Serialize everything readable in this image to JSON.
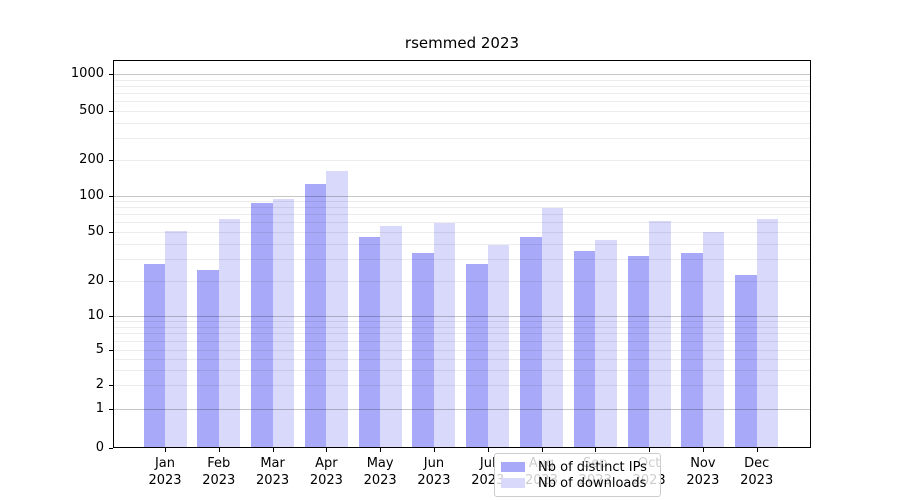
{
  "chart_data": {
    "type": "bar",
    "title": "rsemmed 2023",
    "yscale": "symlog",
    "categories": [
      "Jan",
      "Feb",
      "Mar",
      "Apr",
      "May",
      "Jun",
      "Jul",
      "Aug",
      "Sep",
      "Oct",
      "Nov",
      "Dec"
    ],
    "year": "2023",
    "series": [
      {
        "name": "Nb of distinct IPs",
        "color": "#a9a9f9",
        "values": [
          27,
          24,
          86,
          123,
          44,
          33,
          27,
          44,
          34,
          31,
          33,
          22
        ]
      },
      {
        "name": "Nb of downloads",
        "color": "#d9d9fc",
        "values": [
          50,
          62,
          93,
          158,
          55,
          58,
          38,
          78,
          42,
          60,
          49,
          62
        ]
      }
    ],
    "ytick_labels": [
      "0",
      "1",
      "2",
      "5",
      "10",
      "20",
      "50",
      "100",
      "200",
      "500",
      "1000"
    ],
    "ylim": [
      0,
      1300
    ],
    "grid": true,
    "legend_position": "lower center",
    "axis_color": "#000000",
    "grid_minor_color": "rgba(0,0,0,0.075)",
    "grid_major_color": "rgba(0,0,0,0.22)"
  }
}
